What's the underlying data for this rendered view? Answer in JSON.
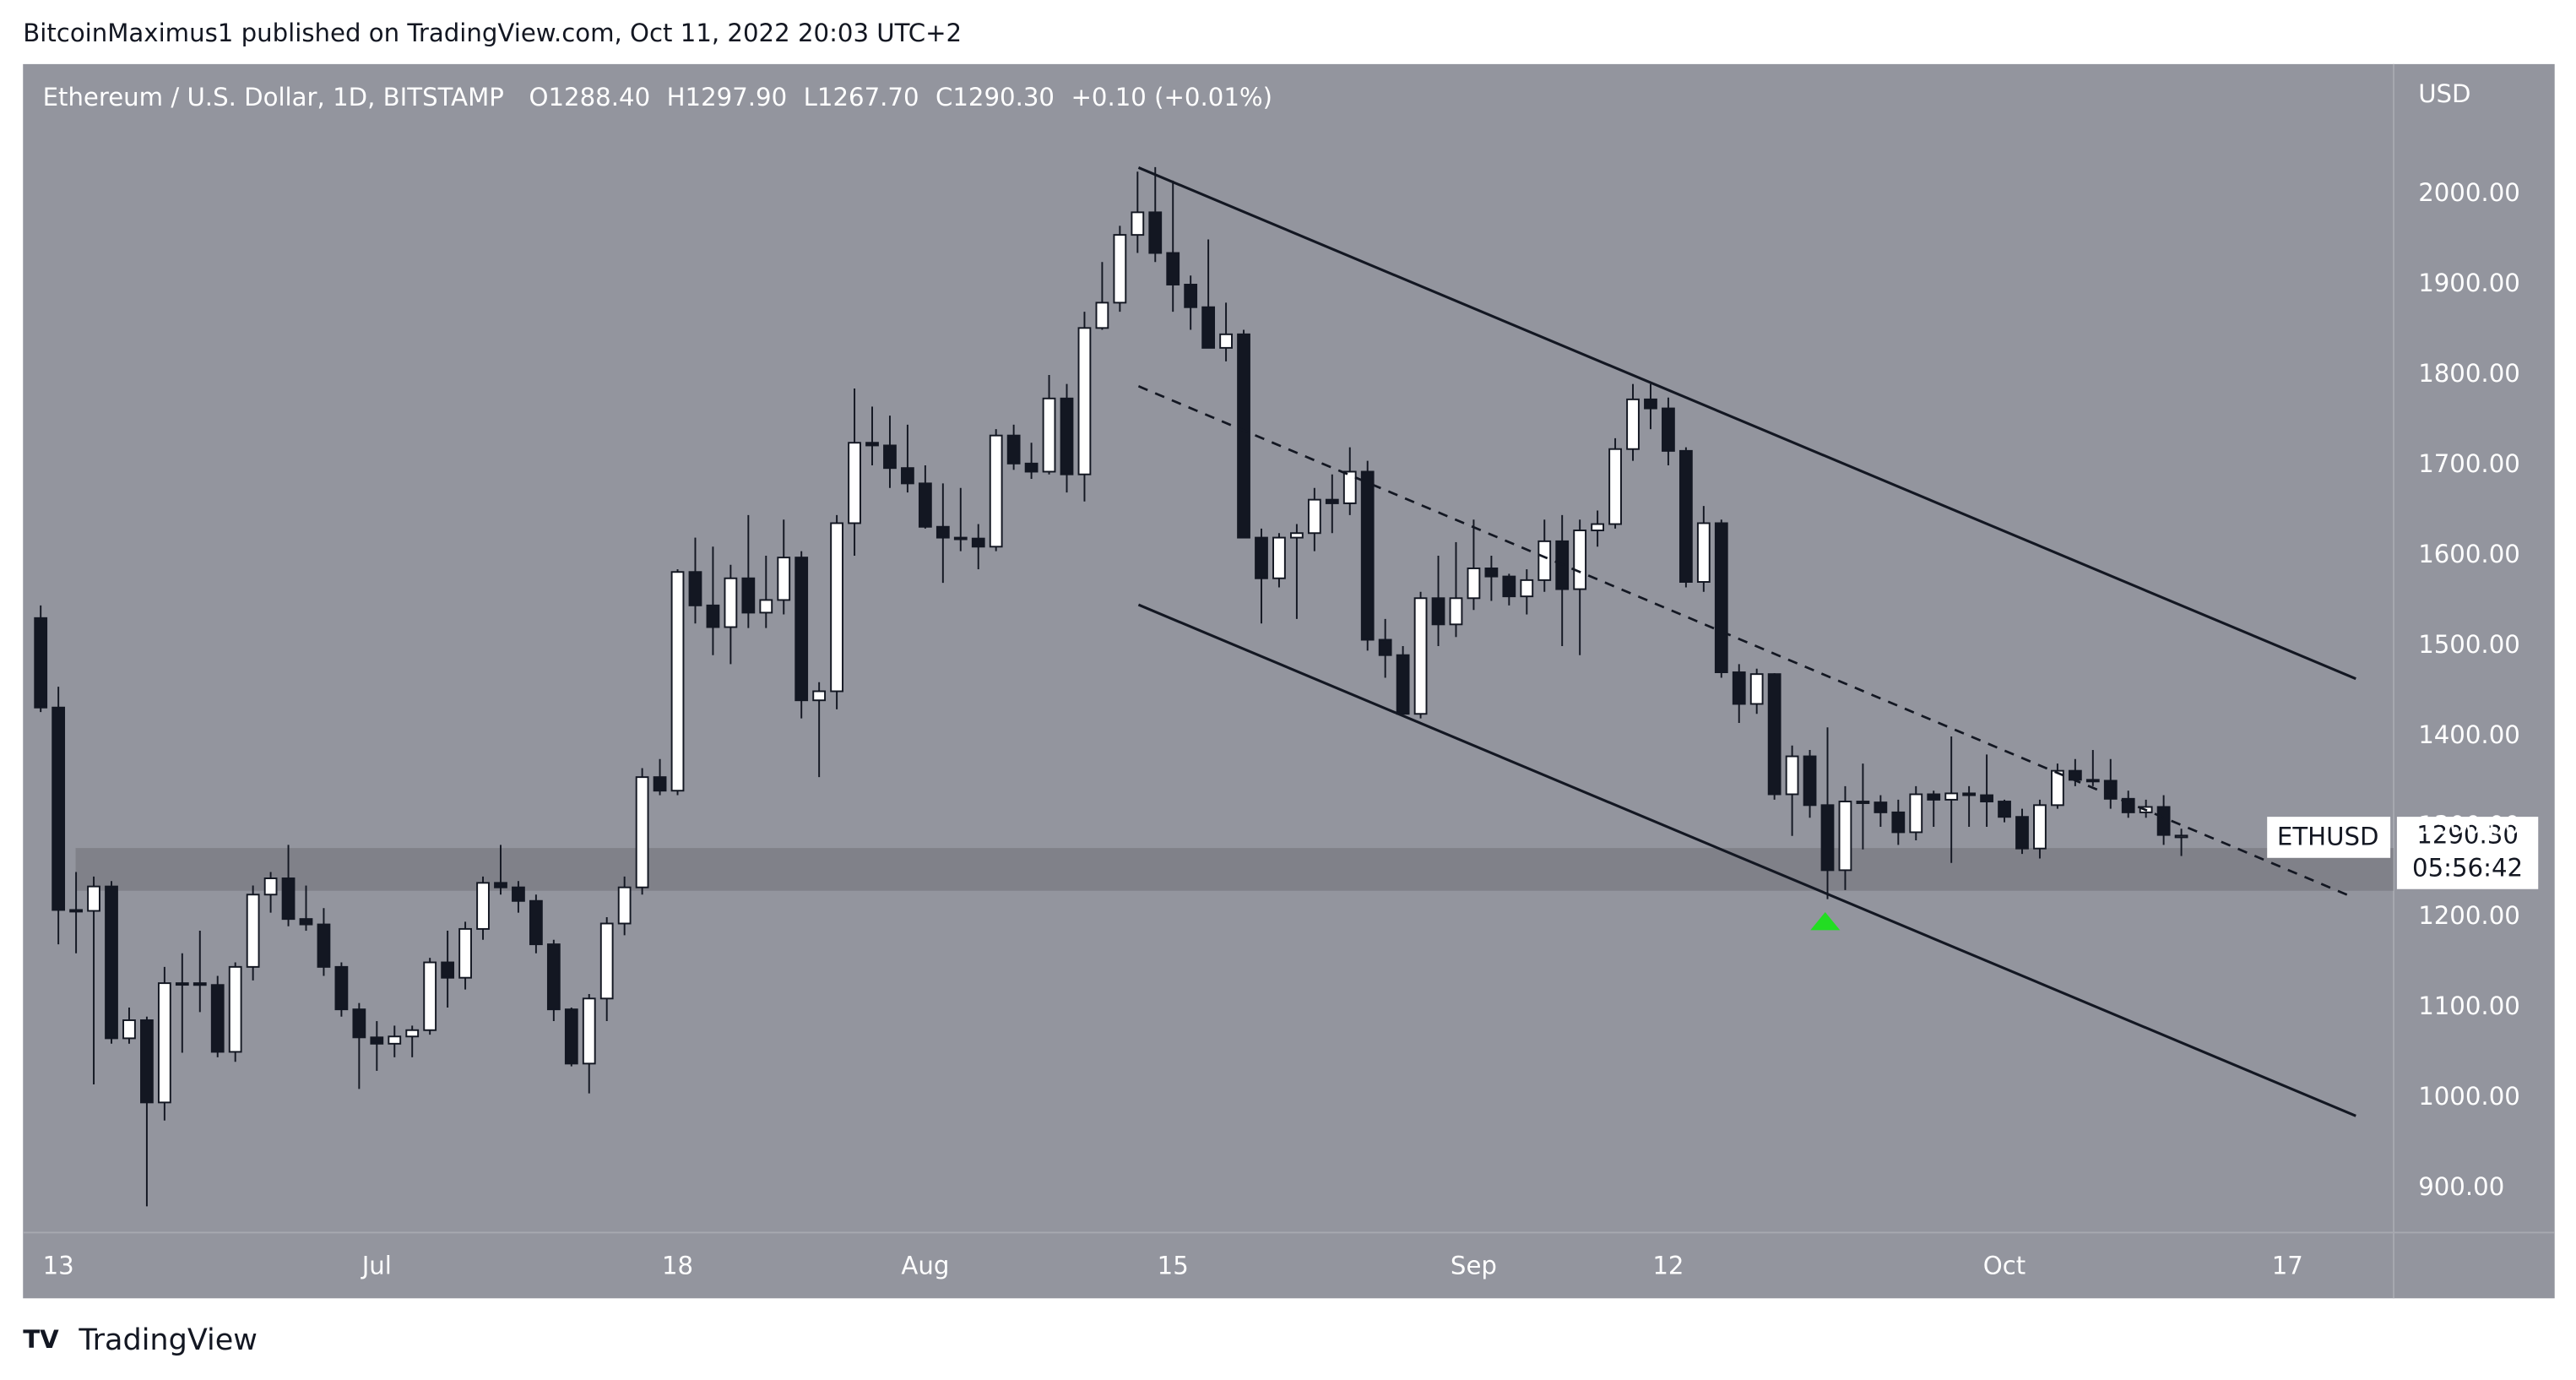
{
  "chart_data": {
    "type": "candlestick",
    "byline": "BitcoinMaximus1 published on TradingView.com, Oct 11, 2022 20:03 UTC+2",
    "title": "Ethereum / U.S. Dollar, 1D, BITSTAMP",
    "ohlc_text": [
      "O1288.40",
      "H1297.90",
      "L1267.70",
      "C1290.30",
      "+0.10 (+0.01%)"
    ],
    "currency": "USD",
    "symbol_label": "ETHUSD",
    "last_price": "1290.30",
    "countdown": "05:56:42",
    "brand": "TradingView",
    "up_color": "#ffffff",
    "down_color": "#131722",
    "grid": false,
    "xlim": [
      -1,
      133
    ],
    "xticks": [
      {
        "value": 1,
        "label": "13"
      },
      {
        "value": 19,
        "label": "Jul"
      },
      {
        "value": 36,
        "label": "18"
      },
      {
        "value": 50,
        "label": "Aug"
      },
      {
        "value": 64,
        "label": "15"
      },
      {
        "value": 81,
        "label": "Sep"
      },
      {
        "value": 92,
        "label": "12"
      },
      {
        "value": 111,
        "label": "Oct"
      },
      {
        "value": 127,
        "label": "17"
      }
    ],
    "ylim": [
      851,
      2144
    ],
    "yticks": [
      {
        "value": 900,
        "label": "900.00"
      },
      {
        "value": 1000,
        "label": "1000.00"
      },
      {
        "value": 1100,
        "label": "1100.00"
      },
      {
        "value": 1200,
        "label": "1200.00"
      },
      {
        "value": 1300,
        "label": "1300.00"
      },
      {
        "value": 1400,
        "label": "1400.00"
      },
      {
        "value": 1500,
        "label": "1500.00"
      },
      {
        "value": 1600,
        "label": "1600.00"
      },
      {
        "value": 1700,
        "label": "1700.00"
      },
      {
        "value": 1800,
        "label": "1800.00"
      },
      {
        "value": 1900,
        "label": "1900.00"
      },
      {
        "value": 2000,
        "label": "2000.00"
      }
    ],
    "open": [
      1531,
      1432,
      1208,
      1207,
      1234,
      1066,
      1086,
      995,
      1127,
      1127,
      1125,
      1051,
      1145,
      1225,
      1243,
      1198,
      1192,
      1145,
      1098,
      1067,
      1060,
      1068,
      1075,
      1150,
      1133,
      1187,
      1238,
      1233,
      1218,
      1170,
      1098,
      1038,
      1110,
      1193,
      1233,
      1355,
      1340,
      1582,
      1545,
      1521,
      1575,
      1537,
      1551,
      1598,
      1440,
      1450,
      1636,
      1725,
      1722,
      1697,
      1680,
      1632,
      1620,
      1619,
      1610,
      1733,
      1702,
      1693,
      1774,
      1690,
      1852,
      1880,
      1955,
      1980,
      1935,
      1900,
      1875,
      1830,
      1845,
      1620,
      1575,
      1620,
      1625,
      1662,
      1658,
      1693,
      1507,
      1490,
      1425,
      1553,
      1524,
      1553,
      1586,
      1577,
      1555,
      1573,
      1616,
      1563,
      1628,
      1635,
      1718,
      1773,
      1763,
      1716,
      1571,
      1636,
      1471,
      1436,
      1469,
      1336,
      1378,
      1324,
      1252,
      1328,
      1327,
      1316,
      1294,
      1336,
      1330,
      1337,
      1335,
      1328,
      1311,
      1276,
      1324,
      1362,
      1352,
      1351,
      1331,
      1316,
      1322,
      1288.4
    ],
    "high": [
      1545,
      1455,
      1250,
      1245,
      1240,
      1100,
      1090,
      1145,
      1160,
      1185,
      1135,
      1150,
      1235,
      1250,
      1280,
      1235,
      1210,
      1150,
      1105,
      1085,
      1080,
      1080,
      1155,
      1185,
      1195,
      1245,
      1280,
      1240,
      1225,
      1175,
      1100,
      1115,
      1200,
      1245,
      1365,
      1375,
      1585,
      1620,
      1610,
      1590,
      1645,
      1600,
      1640,
      1605,
      1460,
      1645,
      1785,
      1765,
      1755,
      1745,
      1700,
      1680,
      1675,
      1635,
      1740,
      1745,
      1725,
      1800,
      1790,
      1870,
      1925,
      1965,
      2025,
      2030,
      2015,
      1910,
      1950,
      1880,
      1850,
      1630,
      1625,
      1635,
      1675,
      1690,
      1720,
      1705,
      1530,
      1500,
      1560,
      1600,
      1615,
      1640,
      1600,
      1580,
      1585,
      1640,
      1645,
      1640,
      1650,
      1730,
      1790,
      1790,
      1775,
      1720,
      1655,
      1640,
      1480,
      1475,
      1470,
      1390,
      1385,
      1410,
      1345,
      1370,
      1335,
      1330,
      1345,
      1340,
      1400,
      1345,
      1380,
      1330,
      1320,
      1330,
      1370,
      1375,
      1385,
      1375,
      1340,
      1330,
      1335,
      1297.9
    ],
    "low": [
      1427,
      1170,
      1160,
      1015,
      1060,
      1060,
      880,
      975,
      1050,
      1095,
      1045,
      1040,
      1130,
      1205,
      1190,
      1185,
      1135,
      1090,
      1010,
      1030,
      1045,
      1045,
      1070,
      1100,
      1120,
      1175,
      1225,
      1205,
      1160,
      1085,
      1035,
      1005,
      1085,
      1180,
      1225,
      1335,
      1335,
      1525,
      1490,
      1480,
      1520,
      1520,
      1535,
      1420,
      1355,
      1430,
      1600,
      1700,
      1675,
      1670,
      1630,
      1570,
      1605,
      1585,
      1605,
      1695,
      1685,
      1690,
      1670,
      1660,
      1850,
      1870,
      1935,
      1925,
      1870,
      1850,
      1830,
      1815,
      1620,
      1525,
      1565,
      1530,
      1605,
      1625,
      1645,
      1495,
      1465,
      1425,
      1420,
      1500,
      1510,
      1540,
      1550,
      1545,
      1535,
      1560,
      1500,
      1490,
      1610,
      1630,
      1705,
      1740,
      1700,
      1565,
      1560,
      1465,
      1415,
      1425,
      1330,
      1290,
      1310,
      1220,
      1230,
      1275,
      1300,
      1280,
      1285,
      1300,
      1260,
      1300,
      1300,
      1305,
      1270,
      1265,
      1320,
      1345,
      1345,
      1320,
      1310,
      1310,
      1280,
      1267.7
    ],
    "close": [
      1432,
      1208,
      1207,
      1234,
      1066,
      1086,
      995,
      1127,
      1127,
      1125,
      1051,
      1145,
      1225,
      1243,
      1198,
      1192,
      1145,
      1098,
      1067,
      1060,
      1068,
      1075,
      1150,
      1133,
      1187,
      1238,
      1233,
      1218,
      1170,
      1098,
      1038,
      1110,
      1193,
      1233,
      1355,
      1340,
      1582,
      1545,
      1521,
      1575,
      1537,
      1551,
      1598,
      1440,
      1450,
      1636,
      1725,
      1722,
      1697,
      1680,
      1632,
      1620,
      1619,
      1610,
      1733,
      1702,
      1693,
      1774,
      1690,
      1852,
      1880,
      1955,
      1980,
      1935,
      1900,
      1875,
      1830,
      1845,
      1620,
      1575,
      1620,
      1625,
      1662,
      1658,
      1693,
      1507,
      1490,
      1425,
      1553,
      1524,
      1553,
      1586,
      1577,
      1555,
      1573,
      1616,
      1563,
      1628,
      1635,
      1718,
      1773,
      1763,
      1716,
      1571,
      1636,
      1471,
      1436,
      1469,
      1336,
      1378,
      1324,
      1252,
      1328,
      1327,
      1316,
      1294,
      1336,
      1330,
      1337,
      1335,
      1328,
      1311,
      1276,
      1324,
      1362,
      1352,
      1351,
      1331,
      1316,
      1322,
      1291,
      1290.3
    ]
  }
}
